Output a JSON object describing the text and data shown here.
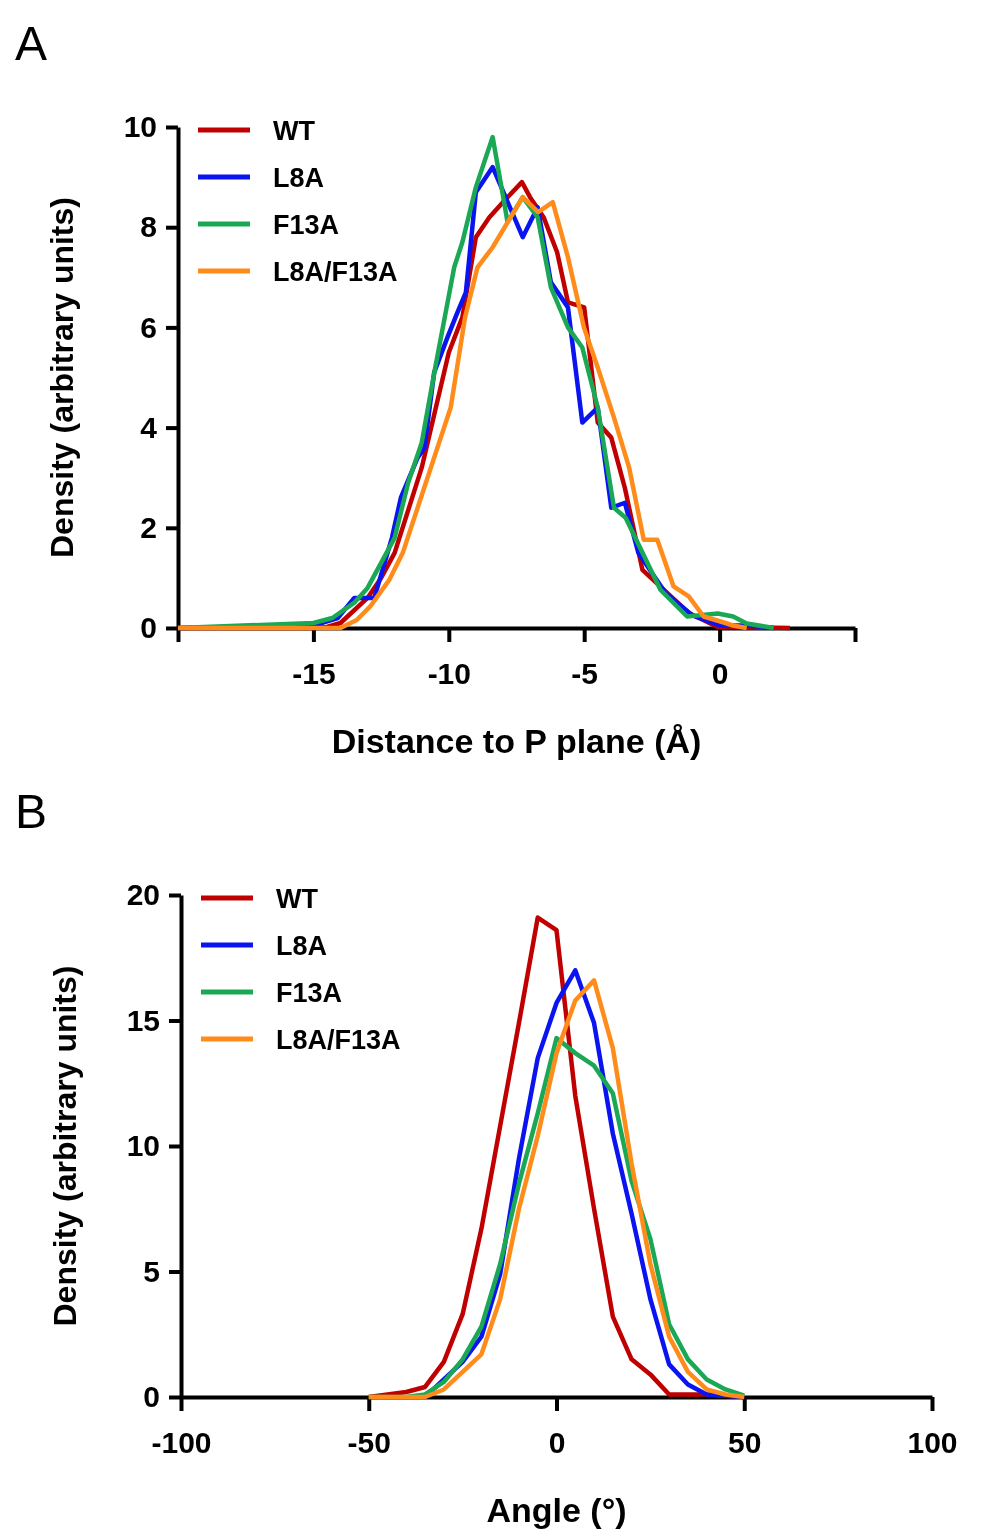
{
  "chart_data": [
    {
      "type": "line",
      "annotations": [
        "A"
      ],
      "xlabel": "Distance to P plane (Å)",
      "ylabel": "Density (arbitrary units)",
      "xlim": [
        -20,
        5
      ],
      "ylim": [
        0,
        10
      ],
      "xticks": [
        {
          "value": -20,
          "label": null
        },
        -15,
        -10,
        -5,
        0,
        {
          "value": 5,
          "label": null
        }
      ],
      "yticks": [
        0,
        2,
        4,
        6,
        8,
        10
      ],
      "legend": "top left",
      "series": [
        {
          "name": "WT",
          "color": "#c00000",
          "x": [
            -20,
            -15,
            -14.5,
            -14,
            -13,
            -12.5,
            -12,
            -11,
            -10,
            -9.5,
            -9,
            -8.5,
            -8,
            -7.3,
            -7,
            -6.5,
            -6,
            -5.6,
            -5,
            -4.5,
            -4,
            -3.5,
            -2.85,
            -1.14,
            -0.07,
            2.6
          ],
          "values": [
            0,
            0,
            0.02,
            0.1,
            0.6,
            1.0,
            1.5,
            3.2,
            5.5,
            6.2,
            7.8,
            8.2,
            8.5,
            8.9,
            8.6,
            8.2,
            7.5,
            6.5,
            6.4,
            4.1,
            3.8,
            2.8,
            1.16,
            0.3,
            0.02,
            0
          ]
        },
        {
          "name": "L8A",
          "color": "#0a14f0",
          "x": [
            -20,
            -15,
            -14.1,
            -13.49,
            -12.75,
            -12.1,
            -11.77,
            -11.15,
            -10.9,
            -10.54,
            -10.05,
            -9.68,
            -9.37,
            -9,
            -8.38,
            -7.27,
            -6.72,
            -6.23,
            -5.6,
            -5.07,
            -4.5,
            -4,
            -3.5,
            -3,
            -2,
            -1,
            0,
            1,
            2
          ],
          "values": [
            0,
            0.05,
            0.2,
            0.6,
            0.6,
            1.8,
            2.6,
            3.4,
            3.6,
            5.1,
            5.8,
            6.3,
            6.7,
            8.7,
            9.2,
            7.8,
            8.4,
            6.9,
            6.4,
            4.1,
            4.4,
            2.4,
            2.5,
            1.5,
            0.7,
            0.25,
            0.05,
            0.05,
            0
          ]
        },
        {
          "name": "F13A",
          "color": "#1aa855",
          "x": [
            -20,
            -15,
            -14.3,
            -13.5,
            -13,
            -12.5,
            -12,
            -11.5,
            -11,
            -10.5,
            -10.15,
            -9.8,
            -9.5,
            -9,
            -8.38,
            -7.83,
            -7.27,
            -6.72,
            -6.23,
            -5.6,
            -5.07,
            -4.5,
            -3.9,
            -3.47,
            -2.18,
            -1.2,
            -0.07,
            0.5,
            1,
            2
          ],
          "values": [
            0,
            0.1,
            0.2,
            0.5,
            0.8,
            1.3,
            1.8,
            2.9,
            3.7,
            5.2,
            6.2,
            7.2,
            7.7,
            8.8,
            9.8,
            8.1,
            8.6,
            8.2,
            6.8,
            6.0,
            5.6,
            4.4,
            2.4,
            2.2,
            0.76,
            0.23,
            0.29,
            0.23,
            0.09,
            0
          ]
        },
        {
          "name": "L8A/F13A",
          "color": "#ff8c1a",
          "x": [
            -20,
            -14,
            -13.4,
            -12.9,
            -12.2,
            -11.7,
            -11.09,
            -10.48,
            -9.93,
            -9.4,
            -8.94,
            -8.38,
            -7.27,
            -6.7,
            -6.16,
            -5.6,
            -5.01,
            -4.5,
            -3.9,
            -3.34,
            -2.8,
            -2.3,
            -1.7,
            -1.14,
            -0.59,
            0.04,
            0.5,
            1
          ],
          "values": [
            0,
            0,
            0.16,
            0.43,
            0.96,
            1.5,
            2.5,
            3.5,
            4.4,
            6.2,
            7.2,
            7.6,
            8.6,
            8.3,
            8.5,
            7.4,
            6.0,
            5.2,
            4.2,
            3.2,
            1.76,
            1.76,
            0.83,
            0.63,
            0.23,
            0.13,
            0.05,
            0
          ]
        }
      ]
    },
    {
      "type": "line",
      "annotations": [
        "B"
      ],
      "xlabel": "Angle (°)",
      "ylabel": "Density (arbitrary units)",
      "xlim": [
        -100,
        100
      ],
      "ylim": [
        0,
        20
      ],
      "xticks": [
        -100,
        -50,
        0,
        50,
        100
      ],
      "yticks": [
        0,
        5,
        10,
        15,
        20
      ],
      "legend": "top left",
      "series": [
        {
          "name": "WT",
          "color": "#c00000",
          "x": [
            -50,
            -45,
            -40,
            -35,
            -30,
            -25,
            -20,
            -15,
            -10,
            -5,
            0,
            5,
            10,
            15,
            20,
            25,
            30,
            35,
            40,
            45,
            50
          ],
          "values": [
            0,
            0.1,
            0.2,
            0.4,
            1.4,
            3.3,
            6.7,
            10.8,
            14.9,
            19.1,
            18.6,
            12.0,
            7.5,
            3.2,
            1.5,
            0.9,
            0.1,
            0.1,
            0.1,
            0.05,
            0
          ]
        },
        {
          "name": "L8A",
          "color": "#0a14f0",
          "x": [
            -35,
            -30,
            -25,
            -20,
            -15,
            -10,
            -5,
            0,
            5,
            10,
            15,
            20,
            25,
            30,
            35,
            40,
            45,
            50
          ],
          "values": [
            0,
            0.7,
            1.4,
            2.4,
            4.9,
            9.5,
            13.5,
            15.7,
            17.0,
            14.9,
            10.5,
            7.3,
            3.9,
            1.3,
            0.5,
            0.1,
            0.05,
            0
          ]
        },
        {
          "name": "F13A",
          "color": "#1aa855",
          "x": [
            -50,
            -45,
            -40,
            -35,
            -30,
            -25,
            -20,
            -15,
            -10,
            -5,
            0,
            5,
            10,
            15,
            20,
            25,
            30,
            35,
            40,
            45,
            50
          ],
          "values": [
            0,
            0,
            0,
            0.1,
            0.6,
            1.5,
            2.8,
            5.3,
            8.5,
            11.3,
            14.3,
            13.7,
            13.2,
            12.1,
            8.6,
            6.3,
            2.9,
            1.5,
            0.7,
            0.3,
            0.05
          ]
        },
        {
          "name": "L8A/F13A",
          "color": "#ff8c1a",
          "x": [
            -50,
            -45,
            -40,
            -35,
            -30,
            -25,
            -20,
            -15,
            -10,
            -5,
            0,
            5,
            10,
            15,
            20,
            25,
            30,
            35,
            40,
            45,
            50
          ],
          "values": [
            0,
            0,
            0,
            0,
            0.3,
            1.0,
            1.7,
            3.9,
            7.5,
            10.4,
            13.7,
            15.8,
            16.6,
            13.9,
            9.3,
            5.3,
            2.4,
            1.0,
            0.3,
            0.1,
            0
          ]
        }
      ]
    }
  ]
}
